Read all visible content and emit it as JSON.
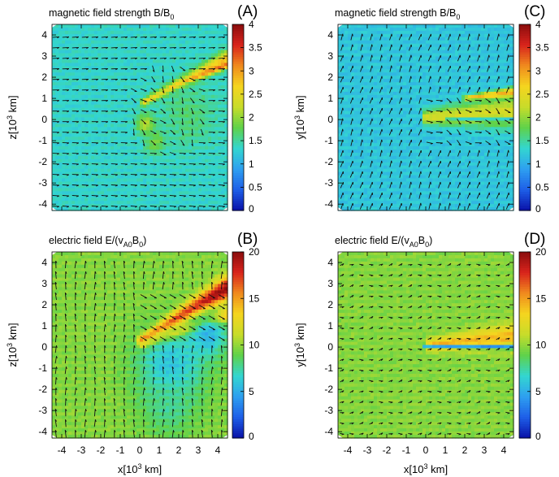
{
  "colormap": [
    "#0a12a8",
    "#1e5fe8",
    "#2ea0f0",
    "#33d6d0",
    "#5fd24a",
    "#c8dc2a",
    "#f5d51f",
    "#f08a1e",
    "#d8231c",
    "#8a0d0d"
  ],
  "chart_data": [
    {
      "type": "heatmap",
      "panel": "(A)",
      "title": "magnetic field strength B/B0",
      "title_main": "magnetic field strength B/B",
      "title_sub": "0",
      "title_tail": "",
      "xlabel": "",
      "ylabel_main": "z[10",
      "ylabel_sup": "3",
      "ylabel_tail": " km]",
      "xlim": [
        -4.5,
        4.5
      ],
      "ylim": [
        -4.3,
        4.5
      ],
      "xticks": [],
      "yticks": [
        "-4",
        "-3",
        "-2",
        "-1",
        "0",
        "1",
        "2",
        "3",
        "4"
      ],
      "colorbar": {
        "ticks": [
          "0",
          "0.5",
          "1",
          "1.5",
          "2",
          "2.5",
          "3",
          "3.5",
          "4"
        ],
        "range": [
          0,
          4
        ]
      },
      "background_value": 1.4,
      "features": [
        {
          "kind": "shock-wing",
          "value": 2.8,
          "from_xy": [
            0.2,
            0.8
          ],
          "to_xy": [
            4.5,
            2.9
          ],
          "half_width": 0.35
        },
        {
          "kind": "shock-wing",
          "value": 3.4,
          "from_xy": [
            1.5,
            1.5
          ],
          "to_xy": [
            4.5,
            2.6
          ],
          "half_width": 0.15
        },
        {
          "kind": "blob",
          "value": 2.3,
          "center_xy": [
            0.3,
            -0.2
          ],
          "radius": 0.45
        },
        {
          "kind": "blob",
          "value": 2.0,
          "center_xy": [
            0.8,
            -1.1
          ],
          "radius": 0.5
        },
        {
          "kind": "blob",
          "value": 1.7,
          "center_xy": [
            2.5,
            0.2
          ],
          "radius": 1.5
        }
      ],
      "vector_field": "magnetic",
      "arrow_style": "horizontal"
    },
    {
      "type": "heatmap",
      "panel": "(B)",
      "title": "electric field E/(vA0B0)",
      "title_main": "electric field E/(v",
      "title_sub": "A0",
      "title_tail": "B",
      "title_sub2": "0",
      "title_end": ")",
      "xlabel_main": "x[10",
      "xlabel_sup": "3",
      "xlabel_tail": " km]",
      "ylabel_main": "z[10",
      "ylabel_sup": "3",
      "ylabel_tail": " km]",
      "xlim": [
        -4.5,
        4.5
      ],
      "ylim": [
        -4.3,
        4.5
      ],
      "xticks": [
        "-4",
        "-3",
        "-2",
        "-1",
        "0",
        "1",
        "2",
        "3",
        "4"
      ],
      "yticks": [
        "-4",
        "-3",
        "-2",
        "-1",
        "0",
        "1",
        "2",
        "3",
        "4"
      ],
      "colorbar": {
        "ticks": [
          "0",
          "5",
          "10",
          "15",
          "20"
        ],
        "range": [
          0,
          20
        ]
      },
      "background_value": 10,
      "features": [
        {
          "kind": "shock-wing",
          "value": 20,
          "from_xy": [
            0.1,
            0.3
          ],
          "to_xy": [
            4.5,
            2.8
          ],
          "half_width": 0.5
        },
        {
          "kind": "shock-wing",
          "value": 16,
          "from_xy": [
            0.1,
            0.1
          ],
          "to_xy": [
            4.5,
            1.5
          ],
          "half_width": 0.35
        },
        {
          "kind": "blob",
          "value": 6,
          "center_xy": [
            1.6,
            -0.9
          ],
          "radius": 1.7
        },
        {
          "kind": "blob",
          "value": 5.5,
          "center_xy": [
            3.5,
            0.6
          ],
          "radius": 1.0
        },
        {
          "kind": "blob",
          "value": 8.0,
          "center_xy": [
            1.5,
            -2.8
          ],
          "radius": 1.3
        }
      ],
      "vector_field": "electric",
      "arrow_style": "vertical"
    },
    {
      "type": "heatmap",
      "panel": "(C)",
      "title": "magnetic field strength B/B0",
      "title_main": "magnetic field strength B/B",
      "title_sub": "0",
      "title_tail": "",
      "xlabel": "",
      "ylabel_main": "y[10",
      "ylabel_sup": "3",
      "ylabel_tail": " km]",
      "xlim": [
        -4.5,
        4.5
      ],
      "ylim": [
        -4.3,
        4.5
      ],
      "xticks": [],
      "yticks": [
        "-4",
        "-3",
        "-2",
        "-1",
        "0",
        "1",
        "2",
        "3",
        "4"
      ],
      "colorbar": {
        "ticks": [
          "0",
          "0.5",
          "1",
          "1.5",
          "2",
          "2.5",
          "3",
          "3.5",
          "4"
        ],
        "range": [
          0,
          4
        ]
      },
      "background_value": 1.25,
      "features": [
        {
          "kind": "shock-wing",
          "value": 2.4,
          "from_xy": [
            0.0,
            0.1
          ],
          "to_xy": [
            4.5,
            0.4
          ],
          "half_width": 0.75
        },
        {
          "kind": "shock-wing",
          "value": 3.0,
          "from_xy": [
            2.0,
            1.0
          ],
          "to_xy": [
            4.5,
            1.3
          ],
          "half_width": 0.2
        },
        {
          "kind": "shock-wing",
          "value": 1.3,
          "from_xy": [
            1.0,
            0.0
          ],
          "to_xy": [
            4.5,
            0.0
          ],
          "half_width": 0.1
        }
      ],
      "vector_field": "magnetic",
      "arrow_style": "diagonal"
    },
    {
      "type": "heatmap",
      "panel": "(D)",
      "title": "electric field E/(vA0B0)",
      "title_main": "electric field E/(v",
      "title_sub": "A0",
      "title_tail": "B",
      "title_sub2": "0",
      "title_end": ")",
      "xlabel_main": "x[10",
      "xlabel_sup": "3",
      "xlabel_tail": " km]",
      "ylabel_main": "y[10",
      "ylabel_sup": "3",
      "ylabel_tail": " km]",
      "xlim": [
        -4.5,
        4.5
      ],
      "ylim": [
        -4.3,
        4.5
      ],
      "xticks": [
        "-4",
        "-3",
        "-2",
        "-1",
        "0",
        "1",
        "2",
        "3",
        "4"
      ],
      "yticks": [
        "-4",
        "-3",
        "-2",
        "-1",
        "0",
        "1",
        "2",
        "3",
        "4"
      ],
      "colorbar": {
        "ticks": [
          "0",
          "5",
          "10",
          "15",
          "20"
        ],
        "range": [
          0,
          20
        ]
      },
      "background_value": 10,
      "features": [
        {
          "kind": "shock-wing",
          "value": 14.5,
          "from_xy": [
            0.2,
            0.1
          ],
          "to_xy": [
            4.5,
            0.5
          ],
          "half_width": 0.6
        },
        {
          "kind": "shock-wing",
          "value": 4,
          "from_xy": [
            -0.1,
            0.0
          ],
          "to_xy": [
            4.5,
            0.0
          ],
          "half_width": 0.12
        }
      ],
      "vector_field": "electric",
      "arrow_style": "short"
    }
  ]
}
